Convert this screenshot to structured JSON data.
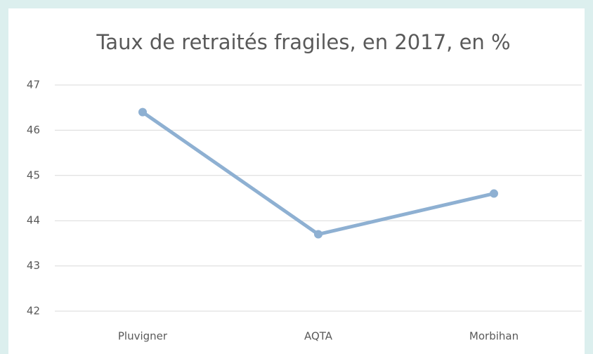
{
  "chart_data": {
    "type": "line",
    "title": "Taux de retraités fragiles, en 2017, en %",
    "categories": [
      "Pluvigner",
      "AQTA",
      "Morbihan"
    ],
    "series": [
      {
        "name": "Taux de retraités fragiles",
        "color": "#8eb0d2",
        "values": [
          46.4,
          43.7,
          44.6
        ]
      }
    ],
    "ylim": [
      42,
      47
    ],
    "yticks": [
      42,
      43,
      44,
      45,
      46,
      47
    ],
    "grid": true
  }
}
